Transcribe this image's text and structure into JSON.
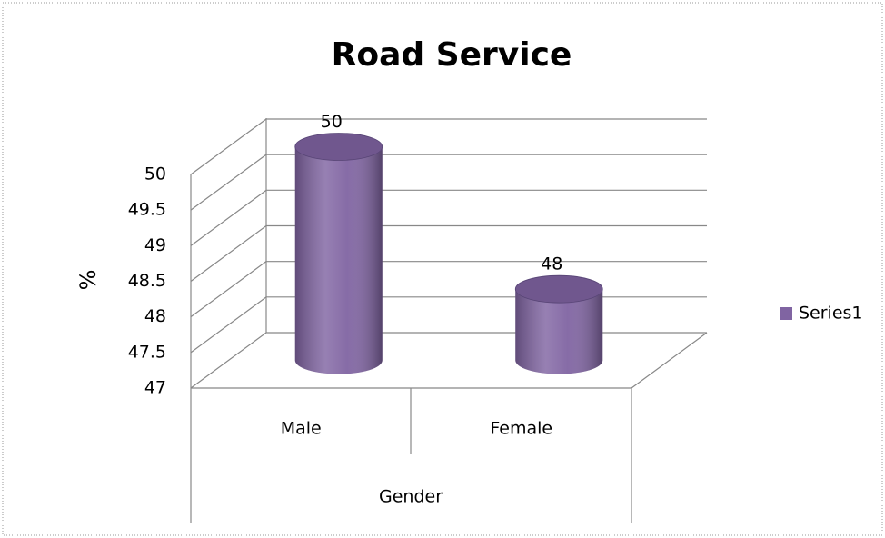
{
  "chart_data": {
    "type": "bar3d",
    "title": "Road Service",
    "categories": [
      "Male",
      "Female"
    ],
    "series": [
      {
        "name": "Series1",
        "color": "#8064a2",
        "values": [
          50,
          48
        ]
      }
    ],
    "ylim": [
      47,
      50
    ],
    "yticks": [
      47,
      47.5,
      48,
      48.5,
      49,
      49.5,
      50
    ],
    "y_label": "%",
    "x_label": "Gender",
    "grid": true,
    "legend": "right"
  }
}
